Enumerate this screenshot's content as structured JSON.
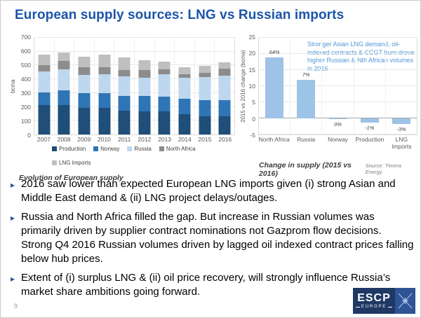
{
  "title": "European supply sources: LNG vs Russian imports",
  "chart_data": [
    {
      "type": "bar",
      "stacked": true,
      "caption": "Evolution of European supply",
      "ylabel": "bcma",
      "ylim": [
        0,
        700
      ],
      "yticks": [
        0,
        100,
        200,
        300,
        400,
        500,
        600,
        700
      ],
      "grid": true,
      "legend_position": "bottom",
      "categories": [
        "2007",
        "2008",
        "2009",
        "2010",
        "2011",
        "2012",
        "2013",
        "2014",
        "2015",
        "2016"
      ],
      "series": [
        {
          "name": "Production",
          "color": "#1f4e79",
          "values": [
            210,
            211,
            190,
            191,
            172,
            165,
            164,
            147,
            130,
            129
          ]
        },
        {
          "name": "Norway",
          "color": "#2e75b6",
          "values": [
            92,
            104,
            104,
            104,
            103,
            110,
            106,
            107,
            115,
            114
          ]
        },
        {
          "name": "Russia",
          "color": "#bdd7ee",
          "values": [
            148,
            150,
            131,
            135,
            140,
            131,
            162,
            151,
            165,
            177
          ]
        },
        {
          "name": "North Africa",
          "color": "#8c8c8c",
          "values": [
            47,
            58,
            55,
            50,
            45,
            56,
            33,
            27,
            30,
            49
          ]
        },
        {
          "name": "LNG Imports",
          "color": "#bfbfbf",
          "values": [
            73,
            62,
            75,
            90,
            88,
            66,
            53,
            50,
            48,
            46
          ]
        }
      ]
    },
    {
      "type": "bar",
      "stacked": false,
      "caption": "Change in supply  (2015 vs 2016)",
      "source": "Source: Timera Energy",
      "ylabel": "2015 vs 2016 change (bcma)",
      "ylim": [
        -5,
        25
      ],
      "yticks": [
        -5,
        0,
        5,
        10,
        15,
        20,
        25
      ],
      "grid": true,
      "bar_color": "#9dc3e6",
      "categories": [
        "North Africa",
        "Russia",
        "Norway",
        "Production",
        "LNG Imports"
      ],
      "values": [
        19,
        12,
        -0.3,
        -1.3,
        -1.8
      ],
      "bar_labels": [
        "64%",
        "7%",
        "0%",
        "-1%",
        "-3%"
      ],
      "annotation": "Stronger Asian LNG demand, oil-indexed contracts & CCGT burn drove higher Russian & Nth African volumes in 2016"
    }
  ],
  "bullets": [
    "2016 saw lower than expected European LNG imports given (i) strong Asian and Middle East demand & (ii) LNG project delays/outages.",
    "Russia and North Africa filled the gap. But increase in Russian volumes was primarily driven by supplier contract nominations not Gazprom flow decisions. Strong Q4 2016 Russian volumes driven by lagged oil indexed contract prices falling below hub prices.",
    "Extent of (i) surplus LNG & (ii) oil price recovery, will strongly influence Russia’s market share ambitions going forward."
  ],
  "bullet_marker": "▸",
  "footer": {
    "page_number": "9",
    "logo_text": "ESCP",
    "logo_subtext": "EUROPE"
  },
  "colors": {
    "title": "#1b55a8",
    "annotation_text": "#4f96d8",
    "right_bar": "#9dc3e6",
    "logo_navy": "#1f3864",
    "logo_blue": "#2e5496"
  }
}
